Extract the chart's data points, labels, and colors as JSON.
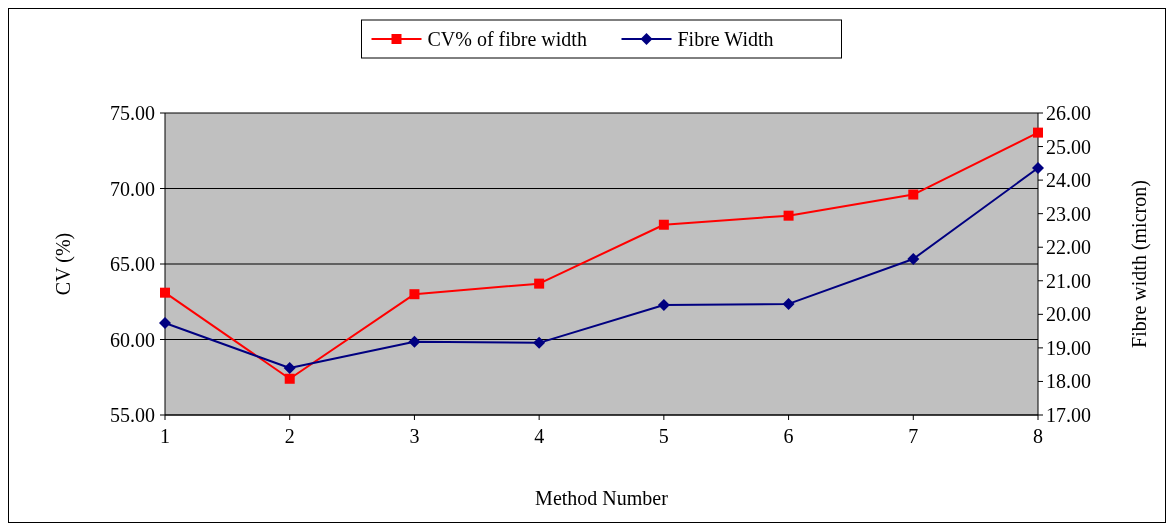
{
  "chart_data": {
    "type": "line",
    "xlabel": "Method Number",
    "ylabel": "CV (%)",
    "y2label": "Fibre width (micron)",
    "x": [
      1,
      2,
      3,
      4,
      5,
      6,
      7,
      8
    ],
    "xlim": [
      1,
      8
    ],
    "xticks": [
      1,
      2,
      3,
      4,
      5,
      6,
      7,
      8
    ],
    "ylim": [
      55,
      75
    ],
    "yticks": [
      {
        "value": 55,
        "label": "55.00"
      },
      {
        "value": 60,
        "label": "60.00"
      },
      {
        "value": 65,
        "label": "65.00"
      },
      {
        "value": 70,
        "label": "70.00"
      },
      {
        "value": 75,
        "label": "75.00"
      }
    ],
    "y2lim": [
      17,
      26
    ],
    "y2ticks": [
      {
        "value": 17,
        "label": "17.00"
      },
      {
        "value": 18,
        "label": "18.00"
      },
      {
        "value": 19,
        "label": "19.00"
      },
      {
        "value": 20,
        "label": "20.00"
      },
      {
        "value": 21,
        "label": "21.00"
      },
      {
        "value": 22,
        "label": "22.00"
      },
      {
        "value": 23,
        "label": "23.00"
      },
      {
        "value": 24,
        "label": "24.00"
      },
      {
        "value": 25,
        "label": "25.00"
      },
      {
        "value": 26,
        "label": "26.00"
      }
    ],
    "grid": "y",
    "legend": "top",
    "line_style": "solid",
    "series": [
      {
        "name": "CV% of fibre width",
        "color": "#ff0000",
        "marker": "square",
        "values": [
          63.1,
          57.4,
          63.0,
          63.7,
          67.6,
          68.2,
          69.6,
          73.7
        ]
      },
      {
        "name": "Fibre Width",
        "color": "#000080",
        "marker": "diamond",
        "axis": "y2",
        "values": [
          19.74,
          18.4,
          19.18,
          19.15,
          20.28,
          20.31,
          21.65,
          24.36
        ]
      }
    ]
  }
}
